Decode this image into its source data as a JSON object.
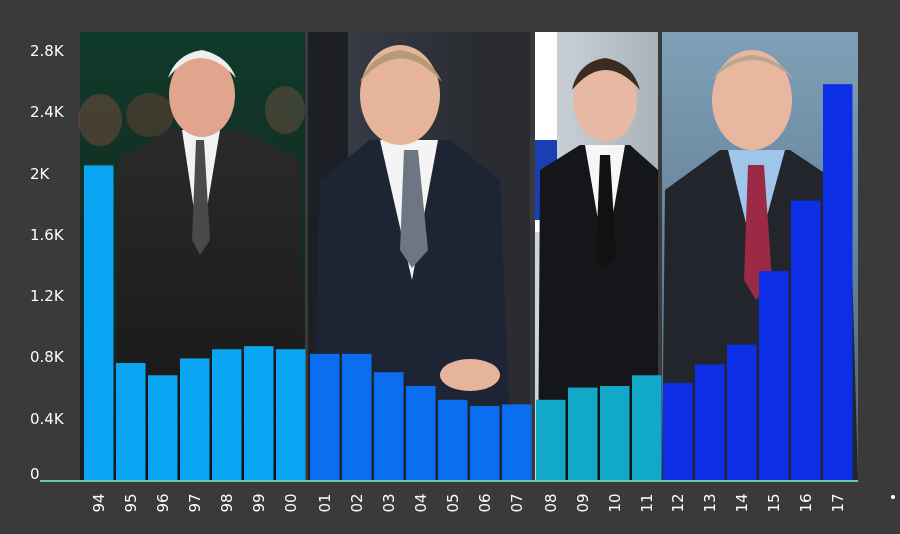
{
  "chart_data": {
    "type": "bar",
    "categories": [
      "94",
      "95",
      "96",
      "97",
      "98",
      "99",
      "00",
      "01",
      "02",
      "03",
      "04",
      "05",
      "06",
      "07",
      "08",
      "09",
      "10",
      "11",
      "12",
      "13",
      "14",
      "15",
      "16",
      "17"
    ],
    "values": [
      2060,
      770,
      690,
      800,
      860,
      880,
      860,
      830,
      830,
      710,
      620,
      530,
      490,
      500,
      530,
      610,
      620,
      690,
      640,
      760,
      890,
      1370,
      1830,
      2590
    ],
    "ylim": [
      0,
      2800
    ],
    "yticks": [
      "0",
      "0.4K",
      "0.8K",
      "1.2K",
      "1.6K",
      "2K",
      "2.4K",
      "2.8K"
    ],
    "ytick_values": [
      0,
      400,
      800,
      1200,
      1600,
      2000,
      2400,
      2800
    ],
    "grid": false,
    "groups": [
      {
        "start": 0,
        "end": 6,
        "color": "#0aa5f2",
        "photo": "portrait-yeltsin"
      },
      {
        "start": 7,
        "end": 13,
        "color": "#0b6ef0",
        "photo": "portrait-putin-early"
      },
      {
        "start": 14,
        "end": 17,
        "color": "#12a8c8",
        "photo": "portrait-medvedev"
      },
      {
        "start": 18,
        "end": 23,
        "color": "#0c2ee6",
        "photo": "portrait-putin-later"
      }
    ]
  }
}
